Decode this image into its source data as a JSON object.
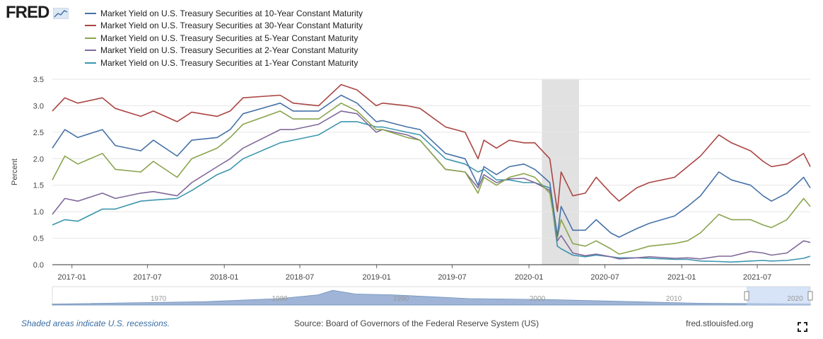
{
  "header": {
    "logo_text": "FRED",
    "logo_mark": "line-chart-icon"
  },
  "legend": [
    {
      "label": "Market Yield on U.S. Treasury Securities at 10-Year Constant Maturity",
      "color": "#4572a7"
    },
    {
      "label": "Market Yield on U.S. Treasury Securities at 30-Year Constant Maturity",
      "color": "#aa4643"
    },
    {
      "label": "Market Yield on U.S. Treasury Securities at 5-Year Constant Maturity",
      "color": "#89a54e"
    },
    {
      "label": "Market Yield on U.S. Treasury Securities at 2-Year Constant Maturity",
      "color": "#80699b"
    },
    {
      "label": "Market Yield on U.S. Treasury Securities at 1-Year Constant Maturity",
      "color": "#3d96ae"
    }
  ],
  "chart_data": {
    "type": "line",
    "title": "",
    "xlabel": "",
    "ylabel": "Percent",
    "ylim": [
      0,
      3.5
    ],
    "xlim": [
      "2016-11-15",
      "2021-11-05"
    ],
    "y_ticks": [
      "0.0",
      "0.5",
      "1.0",
      "1.5",
      "2.0",
      "2.5",
      "3.0",
      "3.5"
    ],
    "x_ticks": [
      "2017-01",
      "2017-07",
      "2018-01",
      "2018-07",
      "2019-01",
      "2019-07",
      "2020-01",
      "2020-07",
      "2021-01",
      "2021-07"
    ],
    "grid": true,
    "legend_position": "top",
    "recession": {
      "start": "2020-02-01",
      "end": "2020-04-30",
      "color": "#e1e1e1"
    },
    "series": [
      {
        "name": "Market Yield on U.S. Treasury Securities at 10-Year Constant Maturity",
        "color": "#4572a7",
        "points": [
          [
            "2016-11-15",
            2.2
          ],
          [
            "2016-12-15",
            2.55
          ],
          [
            "2017-01-15",
            2.4
          ],
          [
            "2017-03-15",
            2.55
          ],
          [
            "2017-04-15",
            2.25
          ],
          [
            "2017-06-15",
            2.15
          ],
          [
            "2017-07-15",
            2.35
          ],
          [
            "2017-09-10",
            2.05
          ],
          [
            "2017-10-15",
            2.35
          ],
          [
            "2017-12-15",
            2.4
          ],
          [
            "2018-01-15",
            2.55
          ],
          [
            "2018-02-15",
            2.85
          ],
          [
            "2018-05-15",
            3.05
          ],
          [
            "2018-06-15",
            2.9
          ],
          [
            "2018-08-15",
            2.9
          ],
          [
            "2018-10-08",
            3.2
          ],
          [
            "2018-11-15",
            3.05
          ],
          [
            "2018-12-31",
            2.7
          ],
          [
            "2019-01-15",
            2.72
          ],
          [
            "2019-03-15",
            2.6
          ],
          [
            "2019-04-15",
            2.55
          ],
          [
            "2019-06-15",
            2.1
          ],
          [
            "2019-08-01",
            2.0
          ],
          [
            "2019-09-01",
            1.5
          ],
          [
            "2019-09-15",
            1.85
          ],
          [
            "2019-10-15",
            1.7
          ],
          [
            "2019-11-15",
            1.85
          ],
          [
            "2019-12-20",
            1.9
          ],
          [
            "2020-01-15",
            1.8
          ],
          [
            "2020-02-20",
            1.55
          ],
          [
            "2020-03-09",
            0.54
          ],
          [
            "2020-03-18",
            1.1
          ],
          [
            "2020-04-15",
            0.65
          ],
          [
            "2020-05-15",
            0.65
          ],
          [
            "2020-06-10",
            0.85
          ],
          [
            "2020-07-15",
            0.6
          ],
          [
            "2020-08-04",
            0.52
          ],
          [
            "2020-09-15",
            0.68
          ],
          [
            "2020-10-15",
            0.78
          ],
          [
            "2020-12-15",
            0.92
          ],
          [
            "2021-01-15",
            1.1
          ],
          [
            "2021-02-15",
            1.3
          ],
          [
            "2021-03-31",
            1.75
          ],
          [
            "2021-04-30",
            1.6
          ],
          [
            "2021-06-15",
            1.5
          ],
          [
            "2021-07-15",
            1.3
          ],
          [
            "2021-08-04",
            1.2
          ],
          [
            "2021-09-10",
            1.35
          ],
          [
            "2021-10-20",
            1.65
          ],
          [
            "2021-11-05",
            1.45
          ]
        ]
      },
      {
        "name": "Market Yield on U.S. Treasury Securities at 30-Year Constant Maturity",
        "color": "#aa4643",
        "points": [
          [
            "2016-11-15",
            2.9
          ],
          [
            "2016-12-15",
            3.15
          ],
          [
            "2017-01-15",
            3.05
          ],
          [
            "2017-03-15",
            3.15
          ],
          [
            "2017-04-15",
            2.95
          ],
          [
            "2017-06-15",
            2.8
          ],
          [
            "2017-07-15",
            2.9
          ],
          [
            "2017-09-10",
            2.7
          ],
          [
            "2017-10-15",
            2.88
          ],
          [
            "2017-12-15",
            2.8
          ],
          [
            "2018-01-15",
            2.9
          ],
          [
            "2018-02-15",
            3.15
          ],
          [
            "2018-05-15",
            3.2
          ],
          [
            "2018-06-15",
            3.05
          ],
          [
            "2018-08-15",
            3.0
          ],
          [
            "2018-10-08",
            3.4
          ],
          [
            "2018-11-15",
            3.3
          ],
          [
            "2018-12-31",
            3.0
          ],
          [
            "2019-01-15",
            3.05
          ],
          [
            "2019-03-15",
            3.0
          ],
          [
            "2019-04-15",
            2.95
          ],
          [
            "2019-06-15",
            2.6
          ],
          [
            "2019-08-01",
            2.5
          ],
          [
            "2019-09-01",
            2.0
          ],
          [
            "2019-09-15",
            2.35
          ],
          [
            "2019-10-15",
            2.2
          ],
          [
            "2019-11-15",
            2.35
          ],
          [
            "2019-12-20",
            2.3
          ],
          [
            "2020-01-15",
            2.3
          ],
          [
            "2020-02-20",
            2.0
          ],
          [
            "2020-03-09",
            1.0
          ],
          [
            "2020-03-18",
            1.75
          ],
          [
            "2020-04-15",
            1.3
          ],
          [
            "2020-05-15",
            1.35
          ],
          [
            "2020-06-10",
            1.65
          ],
          [
            "2020-07-15",
            1.35
          ],
          [
            "2020-08-04",
            1.2
          ],
          [
            "2020-09-15",
            1.45
          ],
          [
            "2020-10-15",
            1.55
          ],
          [
            "2020-12-15",
            1.65
          ],
          [
            "2021-01-15",
            1.85
          ],
          [
            "2021-02-15",
            2.05
          ],
          [
            "2021-03-31",
            2.45
          ],
          [
            "2021-04-30",
            2.3
          ],
          [
            "2021-06-15",
            2.15
          ],
          [
            "2021-07-15",
            1.95
          ],
          [
            "2021-08-04",
            1.85
          ],
          [
            "2021-09-10",
            1.9
          ],
          [
            "2021-10-20",
            2.1
          ],
          [
            "2021-11-05",
            1.85
          ]
        ]
      },
      {
        "name": "Market Yield on U.S. Treasury Securities at 5-Year Constant Maturity",
        "color": "#89a54e",
        "points": [
          [
            "2016-11-15",
            1.6
          ],
          [
            "2016-12-15",
            2.05
          ],
          [
            "2017-01-15",
            1.9
          ],
          [
            "2017-03-15",
            2.1
          ],
          [
            "2017-04-15",
            1.8
          ],
          [
            "2017-06-15",
            1.75
          ],
          [
            "2017-07-15",
            1.95
          ],
          [
            "2017-09-10",
            1.65
          ],
          [
            "2017-10-15",
            2.0
          ],
          [
            "2017-12-15",
            2.2
          ],
          [
            "2018-01-15",
            2.4
          ],
          [
            "2018-02-15",
            2.65
          ],
          [
            "2018-05-15",
            2.9
          ],
          [
            "2018-06-15",
            2.75
          ],
          [
            "2018-08-15",
            2.75
          ],
          [
            "2018-10-08",
            3.05
          ],
          [
            "2018-11-15",
            2.9
          ],
          [
            "2018-12-31",
            2.55
          ],
          [
            "2019-01-15",
            2.55
          ],
          [
            "2019-03-15",
            2.4
          ],
          [
            "2019-04-15",
            2.35
          ],
          [
            "2019-06-15",
            1.8
          ],
          [
            "2019-08-01",
            1.75
          ],
          [
            "2019-09-01",
            1.35
          ],
          [
            "2019-09-15",
            1.65
          ],
          [
            "2019-10-15",
            1.5
          ],
          [
            "2019-11-15",
            1.65
          ],
          [
            "2019-12-20",
            1.72
          ],
          [
            "2020-01-15",
            1.65
          ],
          [
            "2020-02-20",
            1.35
          ],
          [
            "2020-03-09",
            0.5
          ],
          [
            "2020-03-18",
            0.85
          ],
          [
            "2020-04-15",
            0.4
          ],
          [
            "2020-05-15",
            0.35
          ],
          [
            "2020-06-10",
            0.45
          ],
          [
            "2020-07-15",
            0.3
          ],
          [
            "2020-08-04",
            0.2
          ],
          [
            "2020-09-15",
            0.28
          ],
          [
            "2020-10-15",
            0.35
          ],
          [
            "2020-12-15",
            0.4
          ],
          [
            "2021-01-15",
            0.45
          ],
          [
            "2021-02-15",
            0.6
          ],
          [
            "2021-03-31",
            0.95
          ],
          [
            "2021-04-30",
            0.85
          ],
          [
            "2021-06-15",
            0.85
          ],
          [
            "2021-07-15",
            0.75
          ],
          [
            "2021-08-04",
            0.7
          ],
          [
            "2021-09-10",
            0.85
          ],
          [
            "2021-10-20",
            1.25
          ],
          [
            "2021-11-05",
            1.1
          ]
        ]
      },
      {
        "name": "Market Yield on U.S. Treasury Securities at 2-Year Constant Maturity",
        "color": "#80699b",
        "points": [
          [
            "2016-11-15",
            0.95
          ],
          [
            "2016-12-15",
            1.25
          ],
          [
            "2017-01-15",
            1.2
          ],
          [
            "2017-03-15",
            1.35
          ],
          [
            "2017-04-15",
            1.25
          ],
          [
            "2017-06-15",
            1.35
          ],
          [
            "2017-07-15",
            1.38
          ],
          [
            "2017-09-10",
            1.3
          ],
          [
            "2017-10-15",
            1.55
          ],
          [
            "2017-12-15",
            1.85
          ],
          [
            "2018-01-15",
            2.0
          ],
          [
            "2018-02-15",
            2.2
          ],
          [
            "2018-05-15",
            2.55
          ],
          [
            "2018-06-15",
            2.55
          ],
          [
            "2018-08-15",
            2.65
          ],
          [
            "2018-10-08",
            2.9
          ],
          [
            "2018-11-15",
            2.85
          ],
          [
            "2018-12-31",
            2.5
          ],
          [
            "2019-01-15",
            2.55
          ],
          [
            "2019-03-15",
            2.45
          ],
          [
            "2019-04-15",
            2.35
          ],
          [
            "2019-06-15",
            1.8
          ],
          [
            "2019-08-01",
            1.75
          ],
          [
            "2019-09-01",
            1.45
          ],
          [
            "2019-09-15",
            1.7
          ],
          [
            "2019-10-15",
            1.55
          ],
          [
            "2019-11-15",
            1.62
          ],
          [
            "2019-12-20",
            1.63
          ],
          [
            "2020-01-15",
            1.55
          ],
          [
            "2020-02-20",
            1.4
          ],
          [
            "2020-03-09",
            0.45
          ],
          [
            "2020-03-18",
            0.55
          ],
          [
            "2020-04-15",
            0.22
          ],
          [
            "2020-05-15",
            0.17
          ],
          [
            "2020-06-10",
            0.2
          ],
          [
            "2020-07-15",
            0.15
          ],
          [
            "2020-08-04",
            0.11
          ],
          [
            "2020-09-15",
            0.13
          ],
          [
            "2020-10-15",
            0.15
          ],
          [
            "2020-12-15",
            0.12
          ],
          [
            "2021-01-15",
            0.13
          ],
          [
            "2021-02-15",
            0.11
          ],
          [
            "2021-03-31",
            0.16
          ],
          [
            "2021-04-30",
            0.16
          ],
          [
            "2021-06-15",
            0.25
          ],
          [
            "2021-07-15",
            0.22
          ],
          [
            "2021-08-04",
            0.18
          ],
          [
            "2021-09-10",
            0.22
          ],
          [
            "2021-10-20",
            0.45
          ],
          [
            "2021-11-05",
            0.42
          ]
        ]
      },
      {
        "name": "Market Yield on U.S. Treasury Securities at 1-Year Constant Maturity",
        "color": "#3d96ae",
        "points": [
          [
            "2016-11-15",
            0.75
          ],
          [
            "2016-12-15",
            0.85
          ],
          [
            "2017-01-15",
            0.82
          ],
          [
            "2017-03-15",
            1.05
          ],
          [
            "2017-04-15",
            1.05
          ],
          [
            "2017-06-15",
            1.2
          ],
          [
            "2017-07-15",
            1.22
          ],
          [
            "2017-09-10",
            1.25
          ],
          [
            "2017-10-15",
            1.4
          ],
          [
            "2017-12-15",
            1.7
          ],
          [
            "2018-01-15",
            1.8
          ],
          [
            "2018-02-15",
            2.0
          ],
          [
            "2018-05-15",
            2.3
          ],
          [
            "2018-06-15",
            2.35
          ],
          [
            "2018-08-15",
            2.45
          ],
          [
            "2018-10-08",
            2.7
          ],
          [
            "2018-11-15",
            2.7
          ],
          [
            "2018-12-31",
            2.6
          ],
          [
            "2019-01-15",
            2.6
          ],
          [
            "2019-03-15",
            2.5
          ],
          [
            "2019-04-15",
            2.45
          ],
          [
            "2019-06-15",
            2.0
          ],
          [
            "2019-08-01",
            1.9
          ],
          [
            "2019-09-01",
            1.75
          ],
          [
            "2019-09-15",
            1.8
          ],
          [
            "2019-10-15",
            1.6
          ],
          [
            "2019-11-15",
            1.6
          ],
          [
            "2019-12-20",
            1.55
          ],
          [
            "2020-01-15",
            1.55
          ],
          [
            "2020-02-20",
            1.45
          ],
          [
            "2020-03-09",
            0.35
          ],
          [
            "2020-03-18",
            0.3
          ],
          [
            "2020-04-15",
            0.18
          ],
          [
            "2020-05-15",
            0.15
          ],
          [
            "2020-06-10",
            0.18
          ],
          [
            "2020-07-15",
            0.15
          ],
          [
            "2020-08-04",
            0.13
          ],
          [
            "2020-09-15",
            0.13
          ],
          [
            "2020-10-15",
            0.12
          ],
          [
            "2020-12-15",
            0.1
          ],
          [
            "2021-01-15",
            0.1
          ],
          [
            "2021-02-15",
            0.07
          ],
          [
            "2021-03-31",
            0.06
          ],
          [
            "2021-04-30",
            0.05
          ],
          [
            "2021-06-15",
            0.07
          ],
          [
            "2021-07-15",
            0.08
          ],
          [
            "2021-08-04",
            0.07
          ],
          [
            "2021-09-10",
            0.08
          ],
          [
            "2021-10-20",
            0.12
          ],
          [
            "2021-11-05",
            0.16
          ]
        ]
      }
    ]
  },
  "navigator": {
    "labels": [
      "1970",
      "1980",
      "1990",
      "2000",
      "2010",
      "2020"
    ],
    "handle_color": "#ffffff",
    "selection_color": "#bcd0f0"
  },
  "footer": {
    "recession_note": "Shaded areas indicate U.S. recessions.",
    "source": "Source: Board of Governors of the Federal Reserve System (US)",
    "site": "fred.stlouisfed.org"
  }
}
